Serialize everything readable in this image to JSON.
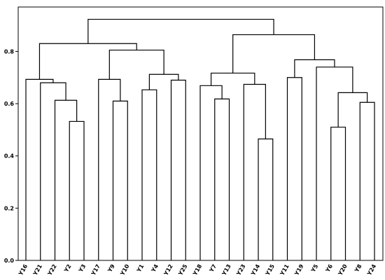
{
  "chart_data": {
    "type": "dendrogram",
    "color": "#000000",
    "ylim": [
      0,
      0.97
    ],
    "yticks": [
      {
        "value": 0,
        "label": "0.0"
      },
      0.2,
      0.4,
      0.6,
      0.8
    ],
    "tree": {
      "height": 0.923,
      "children": [
        {
          "height": 0.83,
          "children": [
            {
              "height": 0.693,
              "children": [
                "Y16",
                {
                  "height": 0.68,
                  "children": [
                    "Y21",
                    {
                      "height": 0.613,
                      "children": [
                        "Y22",
                        {
                          "height": 0.532,
                          "children": [
                            "Y2",
                            "Y3"
                          ]
                        }
                      ]
                    }
                  ]
                }
              ]
            },
            {
              "height": 0.805,
              "children": [
                {
                  "height": 0.693,
                  "children": [
                    "Y17",
                    {
                      "height": 0.61,
                      "children": [
                        "Y9",
                        "Y10"
                      ]
                    }
                  ]
                },
                {
                  "height": 0.712,
                  "children": [
                    {
                      "height": 0.653,
                      "children": [
                        "Y1",
                        "Y4"
                      ]
                    },
                    {
                      "height": 0.69,
                      "children": [
                        "Y12",
                        "Y25"
                      ]
                    }
                  ]
                }
              ]
            }
          ]
        },
        {
          "height": 0.864,
          "children": [
            {
              "height": 0.717,
              "children": [
                {
                  "height": 0.669,
                  "children": [
                    "Y18",
                    {
                      "height": 0.618,
                      "children": [
                        "Y7",
                        "Y13"
                      ]
                    }
                  ]
                },
                {
                  "height": 0.674,
                  "children": [
                    "Y23",
                    {
                      "height": 0.465,
                      "children": [
                        "Y14",
                        "Y15"
                      ]
                    }
                  ]
                }
              ]
            },
            {
              "height": 0.768,
              "children": [
                {
                  "height": 0.7,
                  "children": [
                    "Y11",
                    "Y19"
                  ]
                },
                {
                  "height": 0.74,
                  "children": [
                    "Y5",
                    {
                      "height": 0.642,
                      "children": [
                        {
                          "height": 0.51,
                          "children": [
                            "Y6",
                            "Y20"
                          ]
                        },
                        {
                          "height": 0.605,
                          "children": [
                            "Y8",
                            "Y24"
                          ]
                        }
                      ]
                    }
                  ]
                }
              ]
            }
          ]
        }
      ]
    }
  }
}
